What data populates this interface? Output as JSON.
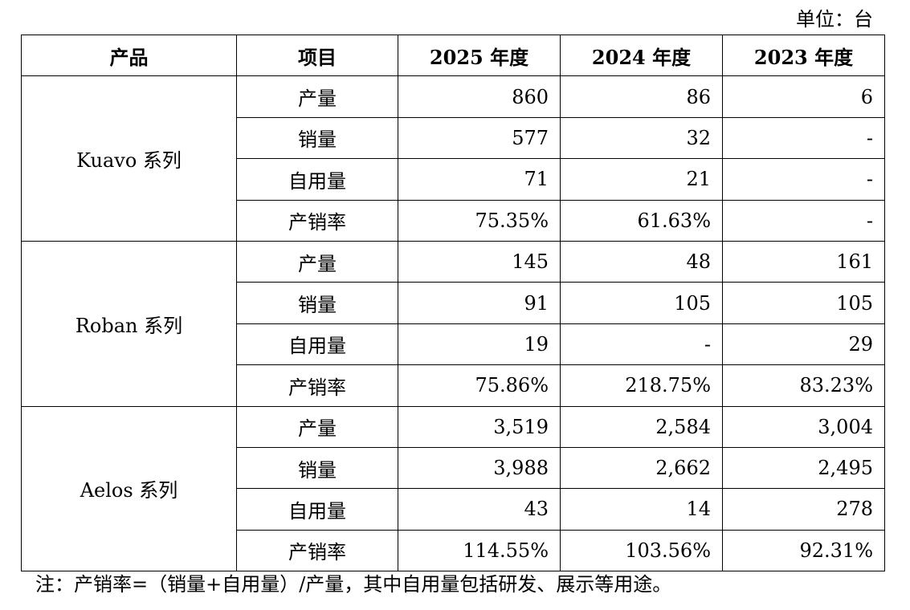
{
  "unit_label": "单位：台",
  "headers": {
    "product": "产品",
    "item": "项目",
    "y2025": "2025 年度",
    "y2024": "2024 年度",
    "y2023": "2023 年度"
  },
  "groups": [
    {
      "name": "Kuavo 系列",
      "rows": [
        {
          "item": "产量",
          "y2025": "860",
          "y2024": "86",
          "y2023": "6"
        },
        {
          "item": "销量",
          "y2025": "577",
          "y2024": "32",
          "y2023": "-"
        },
        {
          "item": "自用量",
          "y2025": "71",
          "y2024": "21",
          "y2023": "-"
        },
        {
          "item": "产销率",
          "y2025": "75.35%",
          "y2024": "61.63%",
          "y2023": "-"
        }
      ]
    },
    {
      "name": "Roban 系列",
      "rows": [
        {
          "item": "产量",
          "y2025": "145",
          "y2024": "48",
          "y2023": "161"
        },
        {
          "item": "销量",
          "y2025": "91",
          "y2024": "105",
          "y2023": "105"
        },
        {
          "item": "自用量",
          "y2025": "19",
          "y2024": "-",
          "y2023": "29"
        },
        {
          "item": "产销率",
          "y2025": "75.86%",
          "y2024": "218.75%",
          "y2023": "83.23%"
        }
      ]
    },
    {
      "name": "Aelos 系列",
      "rows": [
        {
          "item": "产量",
          "y2025": "3,519",
          "y2024": "2,584",
          "y2023": "3,004"
        },
        {
          "item": "销量",
          "y2025": "3,988",
          "y2024": "2,662",
          "y2023": "2,495"
        },
        {
          "item": "自用量",
          "y2025": "43",
          "y2024": "14",
          "y2023": "278"
        },
        {
          "item": "产销率",
          "y2025": "114.55%",
          "y2024": "103.56%",
          "y2023": "92.31%"
        }
      ]
    }
  ],
  "note": "注：产销率=（销量+自用量）/产量，其中自用量包括研发、展示等用途。"
}
